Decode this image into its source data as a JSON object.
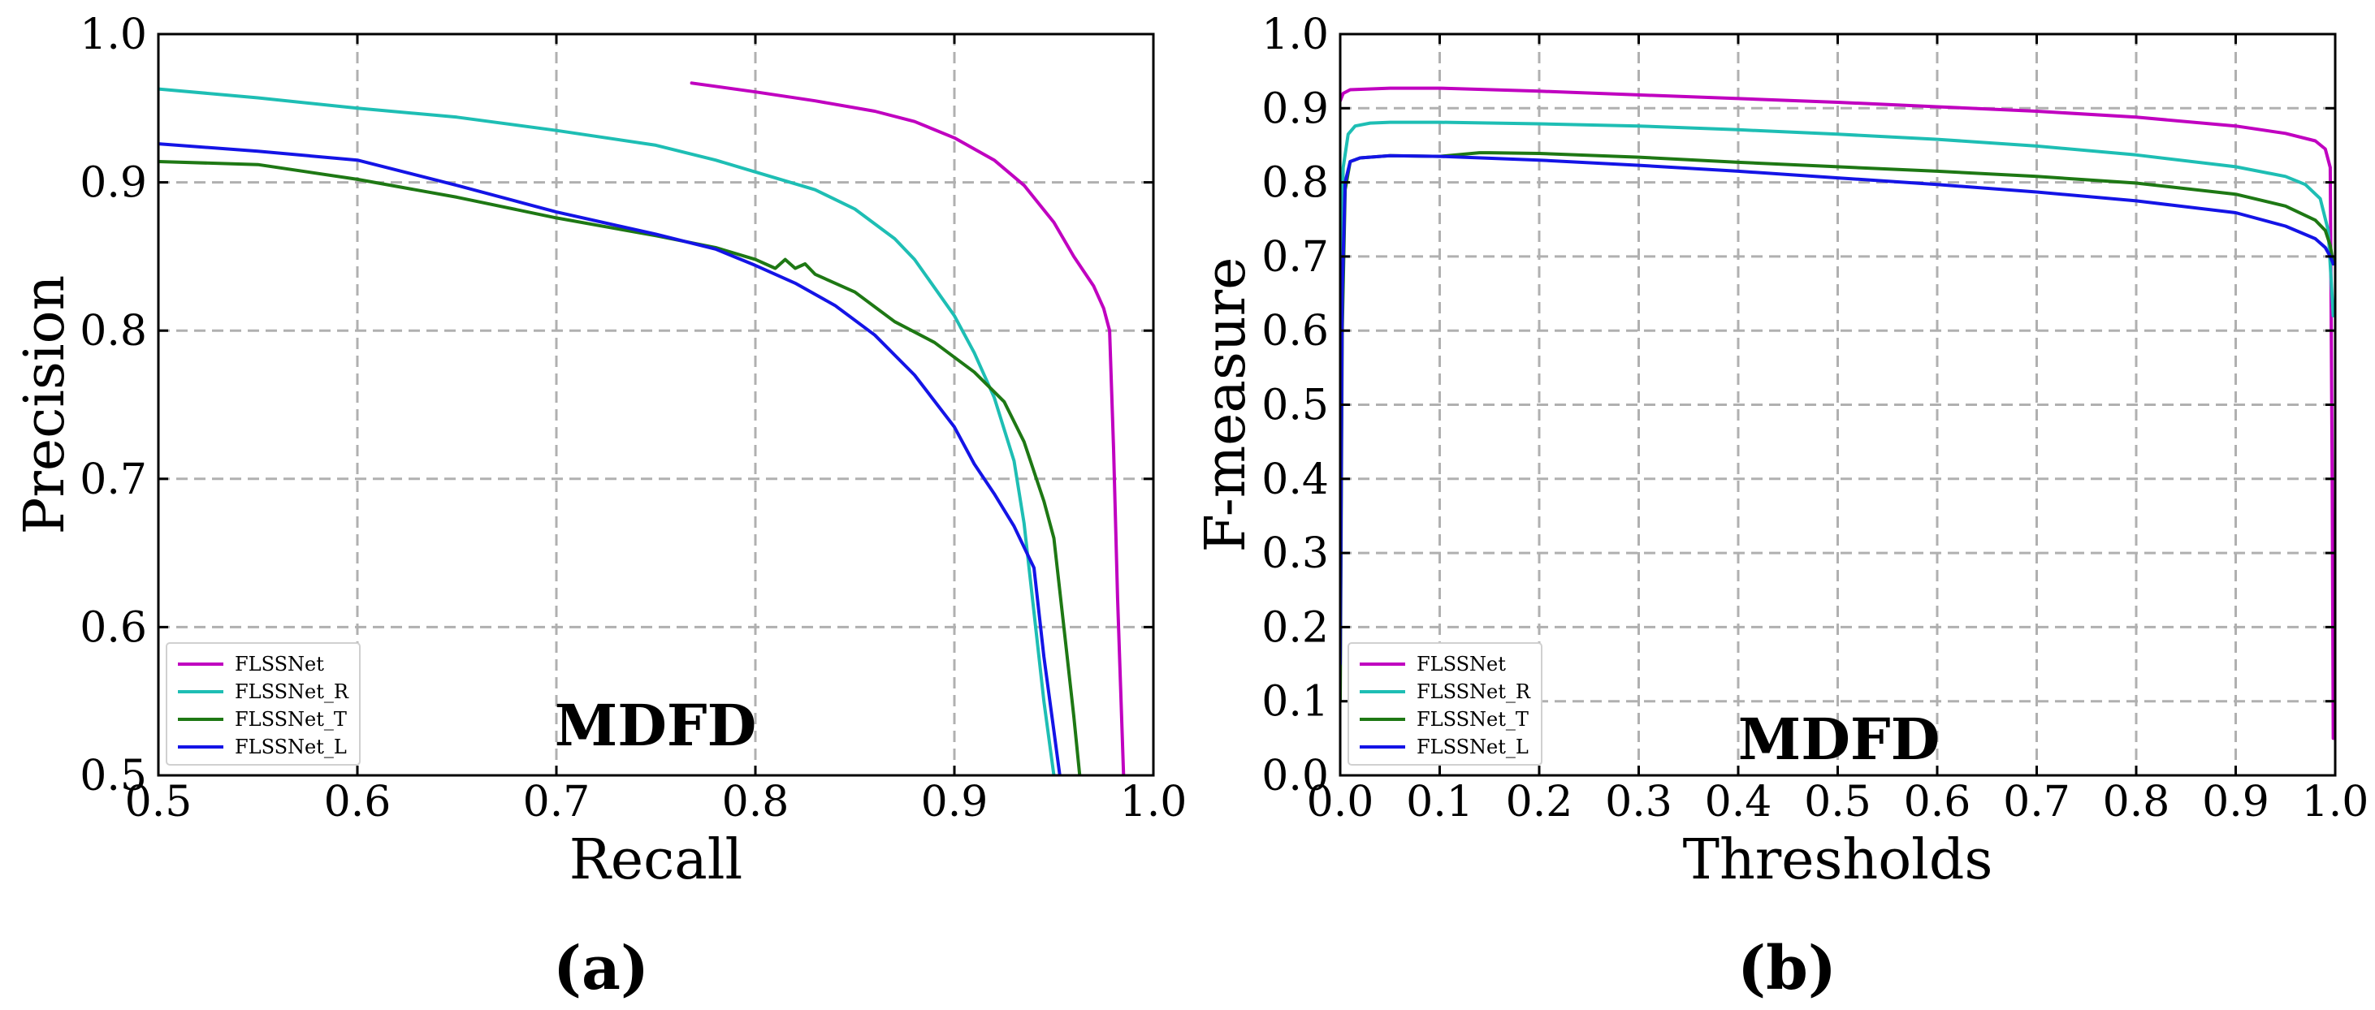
{
  "chart_data": [
    {
      "id": "a",
      "type": "line",
      "panel_label": "(a)",
      "annotation": "MDFD",
      "xlabel": "Recall",
      "ylabel": "Precision",
      "xlim": [
        0.5,
        1.0
      ],
      "ylim": [
        0.5,
        1.0
      ],
      "xticks": [
        "0.5",
        "0.6",
        "0.7",
        "0.8",
        "0.9",
        "1.0"
      ],
      "yticks": [
        "0.5",
        "0.6",
        "0.7",
        "0.8",
        "0.9",
        "1.0"
      ],
      "grid": true,
      "legend_position": "lower-left",
      "series": [
        {
          "name": "FLSSNet",
          "color": "#c000c0",
          "x": [
            0.768,
            0.8,
            0.83,
            0.86,
            0.88,
            0.9,
            0.92,
            0.935,
            0.95,
            0.96,
            0.97,
            0.975,
            0.978,
            0.98,
            0.982,
            0.985
          ],
          "y": [
            0.967,
            0.961,
            0.955,
            0.948,
            0.941,
            0.93,
            0.915,
            0.898,
            0.873,
            0.85,
            0.83,
            0.815,
            0.8,
            0.72,
            0.62,
            0.5
          ]
        },
        {
          "name": "FLSSNet_R",
          "color": "#1ebeb4",
          "x": [
            0.5,
            0.55,
            0.6,
            0.65,
            0.7,
            0.75,
            0.78,
            0.8,
            0.83,
            0.85,
            0.87,
            0.88,
            0.9,
            0.91,
            0.92,
            0.93,
            0.935,
            0.94,
            0.945,
            0.95
          ],
          "y": [
            0.963,
            0.957,
            0.95,
            0.944,
            0.935,
            0.925,
            0.915,
            0.907,
            0.895,
            0.882,
            0.862,
            0.848,
            0.81,
            0.785,
            0.755,
            0.712,
            0.67,
            0.61,
            0.55,
            0.5
          ]
        },
        {
          "name": "FLSSNet_T",
          "color": "#1e7814",
          "x": [
            0.5,
            0.55,
            0.6,
            0.65,
            0.7,
            0.75,
            0.78,
            0.8,
            0.81,
            0.815,
            0.82,
            0.825,
            0.83,
            0.85,
            0.87,
            0.89,
            0.91,
            0.925,
            0.935,
            0.94,
            0.945,
            0.95,
            0.955,
            0.96,
            0.963
          ],
          "y": [
            0.914,
            0.912,
            0.902,
            0.89,
            0.876,
            0.864,
            0.856,
            0.848,
            0.842,
            0.848,
            0.842,
            0.845,
            0.838,
            0.826,
            0.806,
            0.792,
            0.772,
            0.752,
            0.725,
            0.705,
            0.685,
            0.66,
            0.6,
            0.54,
            0.5
          ]
        },
        {
          "name": "FLSSNet_L",
          "color": "#1414e6",
          "x": [
            0.5,
            0.55,
            0.6,
            0.65,
            0.7,
            0.75,
            0.78,
            0.8,
            0.82,
            0.84,
            0.86,
            0.88,
            0.9,
            0.91,
            0.92,
            0.93,
            0.94,
            0.945,
            0.95,
            0.953
          ],
          "y": [
            0.926,
            0.921,
            0.915,
            0.898,
            0.88,
            0.865,
            0.855,
            0.844,
            0.832,
            0.817,
            0.797,
            0.77,
            0.735,
            0.71,
            0.69,
            0.668,
            0.64,
            0.58,
            0.53,
            0.5
          ]
        }
      ]
    },
    {
      "id": "b",
      "type": "line",
      "panel_label": "(b)",
      "annotation": "MDFD",
      "xlabel": "Thresholds",
      "ylabel": "F-measure",
      "xlim": [
        0.0,
        1.0
      ],
      "ylim": [
        0.0,
        1.0
      ],
      "xticks": [
        "0.0",
        "0.1",
        "0.2",
        "0.3",
        "0.4",
        "0.5",
        "0.6",
        "0.7",
        "0.8",
        "0.9",
        "1.0"
      ],
      "yticks": [
        "0.0",
        "0.1",
        "0.2",
        "0.3",
        "0.4",
        "0.5",
        "0.6",
        "0.7",
        "0.8",
        "0.9",
        "1.0"
      ],
      "grid": true,
      "legend_position": "lower-left",
      "series": [
        {
          "name": "FLSSNet",
          "color": "#c000c0",
          "x": [
            0.0,
            0.003,
            0.01,
            0.05,
            0.1,
            0.2,
            0.3,
            0.4,
            0.5,
            0.6,
            0.7,
            0.8,
            0.9,
            0.95,
            0.98,
            0.99,
            0.995,
            0.997,
            0.998
          ],
          "y": [
            0.91,
            0.92,
            0.925,
            0.927,
            0.927,
            0.923,
            0.918,
            0.913,
            0.908,
            0.902,
            0.896,
            0.888,
            0.876,
            0.866,
            0.856,
            0.845,
            0.82,
            0.4,
            0.05
          ]
        },
        {
          "name": "FLSSNet_R",
          "color": "#1ebeb4",
          "x": [
            0.0,
            0.003,
            0.008,
            0.015,
            0.03,
            0.05,
            0.1,
            0.2,
            0.3,
            0.4,
            0.5,
            0.6,
            0.7,
            0.8,
            0.9,
            0.95,
            0.97,
            0.985,
            0.993,
            0.998
          ],
          "y": [
            0.6,
            0.82,
            0.865,
            0.876,
            0.88,
            0.881,
            0.881,
            0.879,
            0.876,
            0.871,
            0.865,
            0.858,
            0.849,
            0.837,
            0.821,
            0.808,
            0.797,
            0.778,
            0.735,
            0.62
          ]
        },
        {
          "name": "FLSSNet_T",
          "color": "#1e7814",
          "x": [
            0.0,
            0.002,
            0.005,
            0.01,
            0.02,
            0.05,
            0.1,
            0.14,
            0.15,
            0.2,
            0.3,
            0.4,
            0.5,
            0.6,
            0.7,
            0.8,
            0.9,
            0.95,
            0.98,
            0.99,
            0.995,
            0.998
          ],
          "y": [
            0.1,
            0.6,
            0.79,
            0.828,
            0.833,
            0.836,
            0.835,
            0.84,
            0.84,
            0.839,
            0.834,
            0.827,
            0.821,
            0.815,
            0.808,
            0.799,
            0.784,
            0.768,
            0.749,
            0.735,
            0.715,
            0.69
          ]
        },
        {
          "name": "FLSSNet_L",
          "color": "#1414e6",
          "x": [
            0.0,
            0.002,
            0.005,
            0.01,
            0.02,
            0.05,
            0.1,
            0.2,
            0.3,
            0.4,
            0.5,
            0.6,
            0.7,
            0.8,
            0.9,
            0.95,
            0.98,
            0.99,
            0.995,
            0.998
          ],
          "y": [
            0.15,
            0.65,
            0.8,
            0.828,
            0.833,
            0.836,
            0.835,
            0.83,
            0.823,
            0.815,
            0.806,
            0.797,
            0.787,
            0.775,
            0.759,
            0.741,
            0.724,
            0.712,
            0.7,
            0.69
          ]
        }
      ]
    }
  ]
}
